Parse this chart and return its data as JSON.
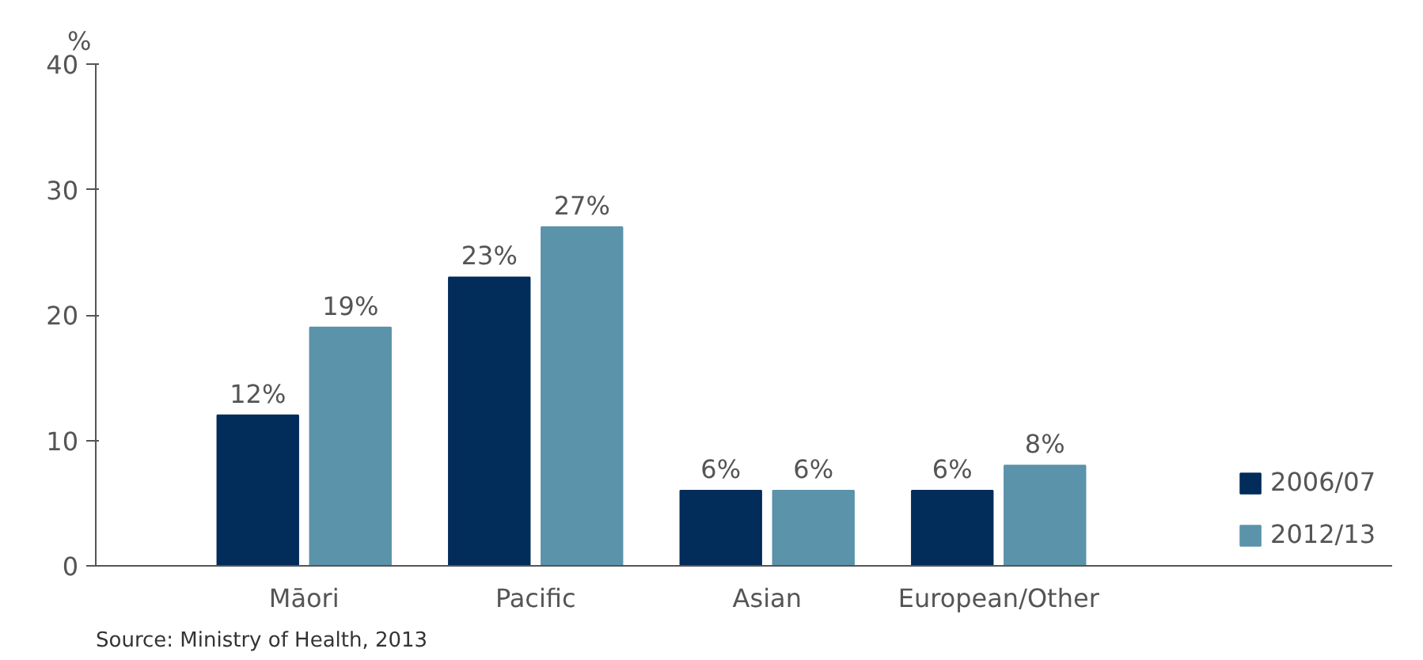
{
  "chart_data": {
    "type": "bar",
    "ylabel": "%",
    "categories": [
      "Māori",
      "Pacific",
      "Asian",
      "European/Other"
    ],
    "series": [
      {
        "name": "2006/07",
        "color": "#022c5a",
        "values": [
          12,
          23,
          6,
          6
        ],
        "value_labels": [
          "12%",
          "23%",
          "6%",
          "6%"
        ]
      },
      {
        "name": "2012/13",
        "color": "#5b93aa",
        "values": [
          19,
          27,
          6,
          8
        ],
        "value_labels": [
          "19%",
          "27%",
          "6%",
          "8%"
        ]
      }
    ],
    "ylim": [
      0,
      40
    ],
    "yticks": [
      0,
      10,
      20,
      30,
      40
    ],
    "grid": false,
    "legend": "bottom right",
    "annotations": [
      "Source: Ministry of Health, 2013"
    ]
  }
}
